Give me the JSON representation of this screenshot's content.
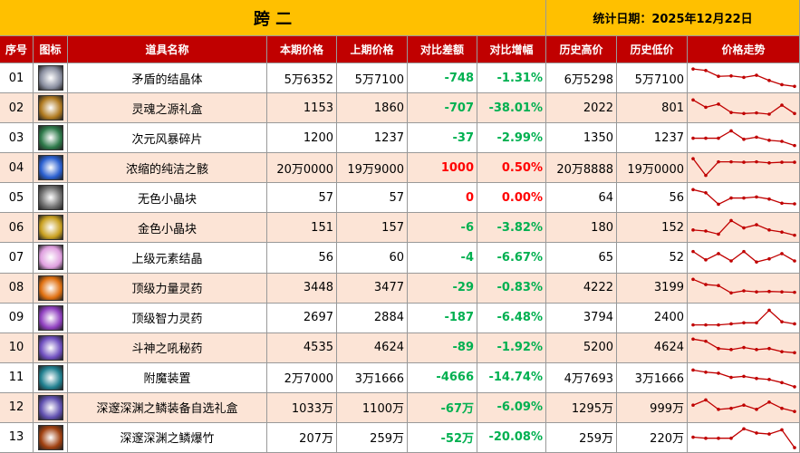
{
  "header": {
    "title": "跨 二",
    "date": "统计日期：2025年12月22日"
  },
  "table": {
    "columns": [
      "序号",
      "图标",
      "道具名称",
      "本期价格",
      "上期价格",
      "对比差额",
      "对比增幅",
      "历史高价",
      "历史低价",
      "价格走势"
    ],
    "rows": [
      {
        "no": "01",
        "name": "矛盾的结晶体",
        "cur": "5万6352",
        "prev": "5万7100",
        "diff": "-748",
        "pct": "-1.31%",
        "high": "6万5298",
        "low": "5万7100",
        "trend": [
          95,
          88,
          60,
          62,
          55,
          65,
          40,
          20,
          12
        ]
      },
      {
        "no": "02",
        "name": "灵魂之源礼盒",
        "cur": "1153",
        "prev": "1860",
        "diff": "-707",
        "pct": "-38.01%",
        "high": "2022",
        "low": "801",
        "trend": [
          90,
          55,
          70,
          30,
          25,
          28,
          22,
          65,
          25
        ]
      },
      {
        "no": "03",
        "name": "次元风暴碎片",
        "cur": "1200",
        "prev": "1237",
        "diff": "-37",
        "pct": "-2.99%",
        "high": "1350",
        "low": "1237",
        "trend": [
          50,
          50,
          50,
          85,
          45,
          55,
          40,
          35,
          15
        ]
      },
      {
        "no": "04",
        "name": "浓缩的纯洁之骸",
        "cur": "20万0000",
        "prev": "19万9000",
        "diff": "1000",
        "pct": "0.50%",
        "high": "20万8888",
        "low": "19万0000",
        "trend": [
          95,
          15,
          80,
          80,
          78,
          80,
          75,
          78,
          78
        ]
      },
      {
        "no": "05",
        "name": "无色小晶块",
        "cur": "57",
        "prev": "57",
        "diff": "0",
        "pct": "0.00%",
        "high": "64",
        "low": "56",
        "trend": [
          90,
          75,
          20,
          50,
          50,
          55,
          45,
          25,
          22
        ]
      },
      {
        "no": "06",
        "name": "金色小晶块",
        "cur": "151",
        "prev": "157",
        "diff": "-6",
        "pct": "-3.82%",
        "high": "180",
        "low": "152",
        "trend": [
          40,
          35,
          20,
          85,
          50,
          65,
          40,
          30,
          15
        ]
      },
      {
        "no": "07",
        "name": "上级元素结晶",
        "cur": "56",
        "prev": "60",
        "diff": "-4",
        "pct": "-6.67%",
        "high": "65",
        "low": "52",
        "trend": [
          80,
          40,
          70,
          35,
          80,
          30,
          45,
          70,
          35
        ]
      },
      {
        "no": "08",
        "name": "顶级力量灵药",
        "cur": "3448",
        "prev": "3477",
        "diff": "-29",
        "pct": "-0.83%",
        "high": "4222",
        "low": "3199",
        "trend": [
          90,
          65,
          60,
          25,
          35,
          30,
          32,
          30,
          28
        ]
      },
      {
        "no": "09",
        "name": "顶级智力灵药",
        "cur": "2697",
        "prev": "2884",
        "diff": "-187",
        "pct": "-6.48%",
        "high": "3794",
        "low": "2400",
        "trend": [
          15,
          15,
          15,
          20,
          25,
          25,
          85,
          30,
          20
        ]
      },
      {
        "no": "10",
        "name": "斗神之吼秘药",
        "cur": "4535",
        "prev": "4624",
        "diff": "-89",
        "pct": "-1.92%",
        "high": "5200",
        "low": "4624",
        "trend": [
          90,
          80,
          45,
          40,
          50,
          40,
          45,
          30,
          25
        ]
      },
      {
        "no": "11",
        "name": "附魔装置",
        "cur": "2万7000",
        "prev": "3万1666",
        "diff": "-4666",
        "pct": "-14.74%",
        "high": "4万7693",
        "low": "3万1666",
        "trend": [
          85,
          75,
          70,
          50,
          55,
          45,
          40,
          25,
          5
        ]
      },
      {
        "no": "12",
        "name": "深邃深渊之鳞装备自选礼盒",
        "cur": "1033万",
        "prev": "1100万",
        "diff": "-67万",
        "pct": "-6.09%",
        "high": "1295万",
        "low": "999万",
        "trend": [
          60,
          85,
          40,
          45,
          60,
          40,
          75,
          45,
          30
        ]
      },
      {
        "no": "13",
        "name": "深邃深渊之鳞爆竹",
        "cur": "207万",
        "prev": "259万",
        "diff": "-52万",
        "pct": "-20.08%",
        "high": "259万",
        "low": "220万",
        "trend": [
          50,
          45,
          45,
          45,
          90,
          70,
          65,
          85,
          0
        ]
      }
    ]
  }
}
